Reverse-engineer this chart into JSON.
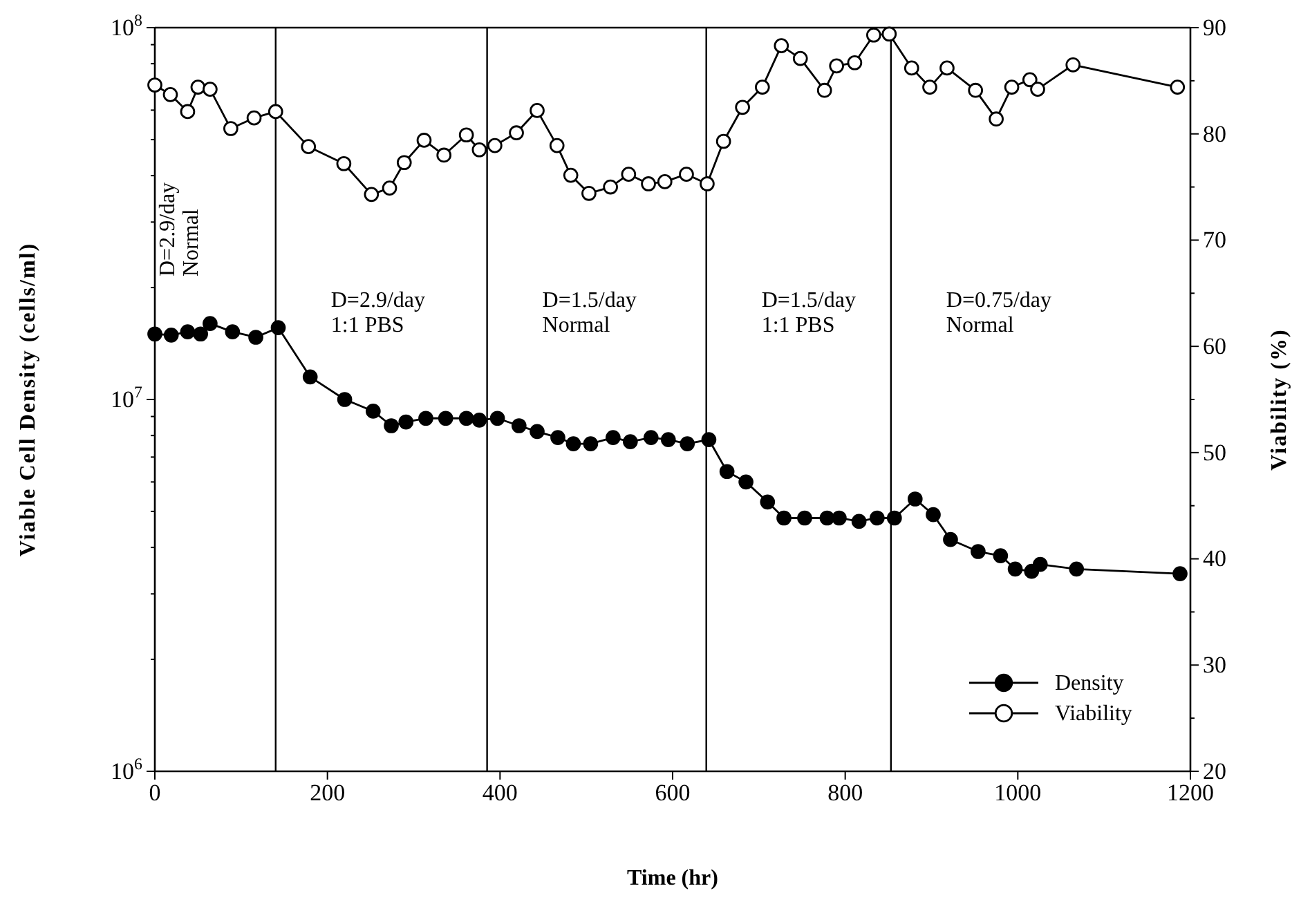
{
  "chart_data": {
    "type": "line",
    "xlabel": "Time (hr)",
    "ylabel": "Viable Cell Density (cells/ml)",
    "y2label": "Viability (%)",
    "log": "y",
    "legend": "bottom right",
    "marker": "circle",
    "line_style": "solid",
    "xlim": [
      0,
      1200
    ],
    "xticks": [
      0,
      200,
      400,
      600,
      800,
      1000,
      1200
    ],
    "ylim": [
      1000000,
      100000000
    ],
    "yticks": [
      {
        "value": 1000000,
        "label": "10$^{6}$"
      },
      {
        "value": 2000000,
        "label": null
      },
      {
        "value": 3000000,
        "label": null
      },
      {
        "value": 4000000,
        "label": null
      },
      {
        "value": 5000000,
        "label": null
      },
      {
        "value": 6000000,
        "label": null
      },
      {
        "value": 7000000,
        "label": null
      },
      {
        "value": 8000000,
        "label": null
      },
      {
        "value": 9000000,
        "label": null
      },
      {
        "value": 10000000,
        "label": "10$^{7}$"
      },
      {
        "value": 20000000,
        "label": null
      },
      {
        "value": 30000000,
        "label": null
      },
      {
        "value": 40000000,
        "label": null
      },
      {
        "value": 50000000,
        "label": null
      },
      {
        "value": 60000000,
        "label": null
      },
      {
        "value": 70000000,
        "label": null
      },
      {
        "value": 80000000,
        "label": null
      },
      {
        "value": 90000000,
        "label": null
      },
      {
        "value": 100000000,
        "label": "10$^{8}$"
      }
    ],
    "y2lim": [
      20,
      90
    ],
    "y2ticks": [
      20,
      {
        "value": 25,
        "label": null
      },
      30,
      {
        "value": 35,
        "label": null
      },
      40,
      {
        "value": 45,
        "label": null
      },
      50,
      {
        "value": 55,
        "label": null
      },
      60,
      {
        "value": 65,
        "label": null
      },
      70,
      {
        "value": 75,
        "label": null
      },
      80,
      {
        "value": 85,
        "label": null
      },
      90
    ],
    "ref_lines": [
      {
        "axis": "x",
        "value": 140,
        "color": "#000000"
      },
      {
        "axis": "x",
        "value": 385,
        "color": "#000000"
      },
      {
        "axis": "x",
        "value": 639,
        "color": "#000000"
      },
      {
        "axis": "x",
        "value": 853,
        "color": "#000000"
      }
    ],
    "annotations": [
      "D=2.9/day\nNormal",
      "D=2.9/day\n1:1 PBS",
      "D=1.5/day\nNormal",
      "D=1.5/day\n1:1 PBS",
      "D=0.75/day\nNormal"
    ],
    "series": [
      {
        "name": "Density",
        "color": "#000000",
        "x": [
          0,
          19,
          38,
          53,
          64,
          90,
          117,
          143,
          180,
          220,
          253,
          274,
          291,
          314,
          337,
          361,
          376,
          397,
          422,
          443,
          467,
          485,
          505,
          531,
          551,
          575,
          595,
          617,
          642,
          663,
          685,
          710,
          729,
          753,
          779,
          793,
          816,
          837,
          857,
          881,
          902,
          922,
          954,
          980,
          997,
          1016,
          1026,
          1068,
          1188
        ],
        "values": [
          15000000,
          14900000,
          15200000,
          15000000,
          16000000,
          15200000,
          14700000,
          15600000,
          11500000,
          10000000,
          9300000,
          8500000,
          8700000,
          8900000,
          8900000,
          8900000,
          8800000,
          8900000,
          8500000,
          8200000,
          7900000,
          7600000,
          7600000,
          7900000,
          7700000,
          7900000,
          7800000,
          7600000,
          7800000,
          6400000,
          6000000,
          5300000,
          4800000,
          4800000,
          4800000,
          4800000,
          4700000,
          4800000,
          4800000,
          5400000,
          4900000,
          4200000,
          3900000,
          3800000,
          3500000,
          3450000,
          3600000,
          3500000,
          3400000
        ]
      },
      {
        "name": "Viability",
        "color": "#000000",
        "axis": "y2",
        "x": [
          0,
          18,
          38,
          50,
          64,
          88,
          115,
          140,
          178,
          219,
          251,
          272,
          289,
          312,
          335,
          361,
          376,
          394,
          419,
          443,
          466,
          482,
          503,
          528,
          549,
          572,
          591,
          616,
          640,
          659,
          681,
          704,
          726,
          748,
          776,
          790,
          811,
          833,
          851,
          877,
          898,
          918,
          951,
          975,
          993,
          1014,
          1023,
          1064,
          1185
        ],
        "values": [
          84.6,
          83.7,
          82.1,
          84.4,
          84.2,
          80.5,
          81.5,
          82.1,
          78.8,
          77.2,
          74.3,
          74.9,
          77.3,
          79.4,
          78.0,
          79.9,
          78.5,
          78.9,
          80.1,
          82.2,
          78.9,
          76.1,
          74.4,
          75.0,
          76.2,
          75.3,
          75.5,
          76.2,
          75.3,
          79.3,
          82.5,
          84.4,
          88.3,
          87.1,
          84.1,
          86.4,
          86.7,
          89.3,
          89.4,
          86.2,
          84.4,
          86.2,
          84.1,
          81.4,
          84.4,
          85.1,
          84.2,
          86.5,
          84.4
        ]
      }
    ]
  }
}
